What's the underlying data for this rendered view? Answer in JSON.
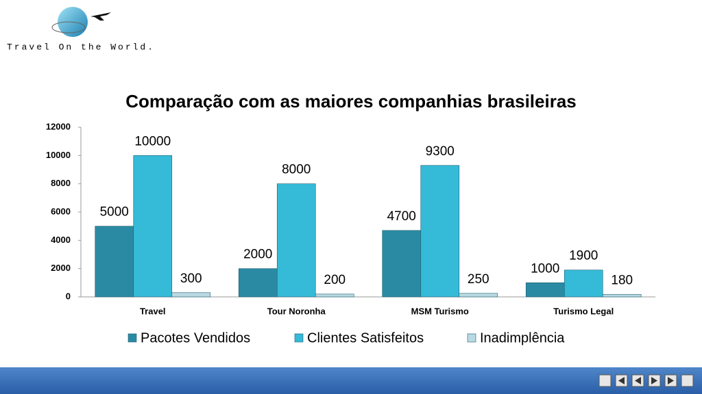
{
  "logo": {
    "text": "Travel On the World."
  },
  "chart_data": {
    "type": "bar",
    "title": "Comparação com as maiores companhias brasileiras",
    "categories": [
      "Travel",
      "Tour Noronha",
      "MSM Turismo",
      "Turismo Legal"
    ],
    "series": [
      {
        "name": "Pacotes Vendidos",
        "color": "#2b8aa3",
        "values": [
          5000,
          2000,
          4700,
          1000
        ]
      },
      {
        "name": "Clientes Satisfeitos",
        "color": "#35bad8",
        "values": [
          10000,
          8000,
          9300,
          1900
        ]
      },
      {
        "name": "Inadimplência",
        "color": "#b9d9e2",
        "values": [
          300,
          200,
          250,
          180
        ]
      }
    ],
    "ylim": [
      0,
      12000
    ],
    "yticks": [
      0,
      2000,
      4000,
      6000,
      8000,
      10000,
      12000
    ],
    "legend": "bottom"
  }
}
